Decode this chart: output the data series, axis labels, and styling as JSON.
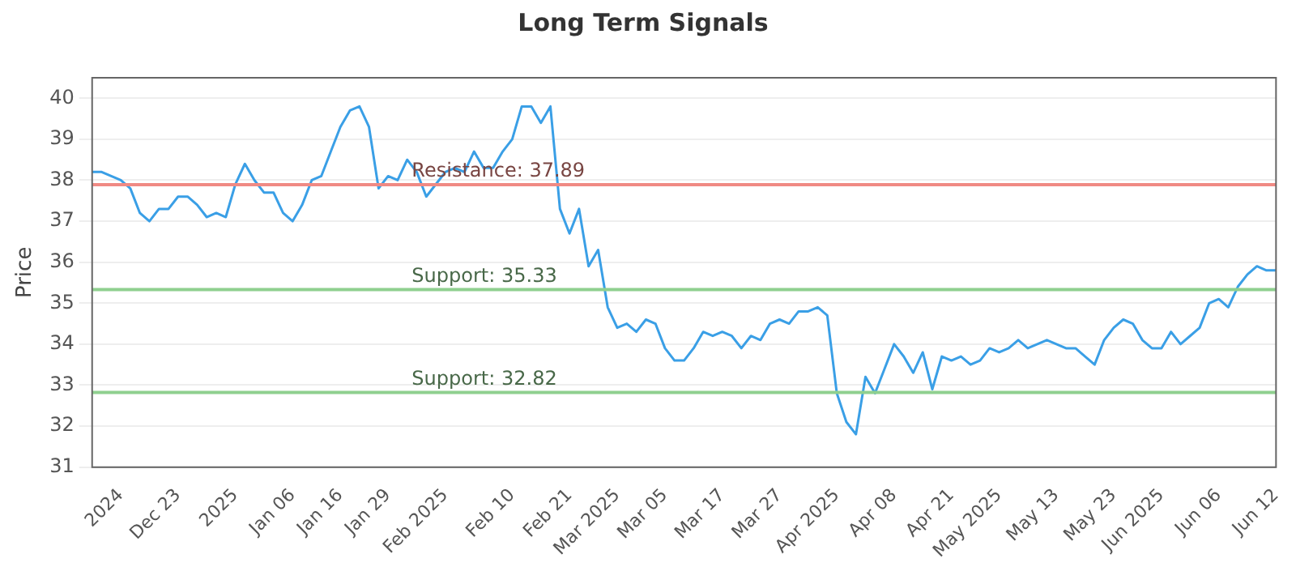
{
  "chart_data": {
    "type": "line",
    "title": "Long Term Signals",
    "ylabel": "Price",
    "categories": [
      null,
      null,
      null,
      "2024",
      null,
      null,
      null,
      null,
      null,
      "Dec 23",
      null,
      null,
      null,
      null,
      null,
      "2025",
      null,
      null,
      null,
      null,
      null,
      "Jan 06",
      null,
      null,
      null,
      null,
      "Jan 16",
      null,
      null,
      null,
      null,
      "Jan 29",
      null,
      null,
      null,
      null,
      null,
      "Feb 2025",
      null,
      null,
      null,
      null,
      null,
      null,
      "Feb 10",
      null,
      null,
      null,
      null,
      null,
      "Feb 21",
      null,
      null,
      null,
      null,
      "Mar 2025",
      null,
      null,
      null,
      null,
      "Mar 05",
      null,
      null,
      null,
      null,
      null,
      "Mar 17",
      null,
      null,
      null,
      null,
      null,
      "Mar 27",
      null,
      null,
      null,
      null,
      null,
      "Apr 2025",
      null,
      null,
      null,
      null,
      null,
      "Apr 08",
      null,
      null,
      null,
      null,
      null,
      "Apr 21",
      null,
      null,
      null,
      null,
      "May 2025",
      null,
      null,
      null,
      null,
      null,
      "May 13",
      null,
      null,
      null,
      null,
      null,
      "May 23",
      null,
      null,
      null,
      null,
      "Jun 2025",
      null,
      null,
      null,
      null,
      null,
      "Jun 06",
      null,
      null,
      null,
      null,
      null,
      "Jun 12"
    ],
    "series": [
      {
        "color": "#3a9fe6",
        "values": [
          38.2,
          38.2,
          38.1,
          38.0,
          37.8,
          37.2,
          37.0,
          37.3,
          37.3,
          37.6,
          37.6,
          37.4,
          37.1,
          37.2,
          37.1,
          37.9,
          38.4,
          38.0,
          37.7,
          37.7,
          37.2,
          37.0,
          37.4,
          38.0,
          38.1,
          38.7,
          39.3,
          39.7,
          39.8,
          39.3,
          37.8,
          38.1,
          38.0,
          38.5,
          38.2,
          37.6,
          37.9,
          38.2,
          38.3,
          38.2,
          38.7,
          38.3,
          38.3,
          38.7,
          39.0,
          39.8,
          39.8,
          39.4,
          39.8,
          37.3,
          36.7,
          37.3,
          35.9,
          36.3,
          34.9,
          34.4,
          34.5,
          34.3,
          34.6,
          34.5,
          33.9,
          33.6,
          33.6,
          33.9,
          34.3,
          34.2,
          34.3,
          34.2,
          33.9,
          34.2,
          34.1,
          34.5,
          34.6,
          34.5,
          34.8,
          34.8,
          34.9,
          34.7,
          32.8,
          32.1,
          31.8,
          33.2,
          32.8,
          33.4,
          34.0,
          33.7,
          33.3,
          33.8,
          32.9,
          33.7,
          33.6,
          33.7,
          33.5,
          33.6,
          33.9,
          33.8,
          33.9,
          34.1,
          33.9,
          34.0,
          34.1,
          34.0,
          33.9,
          33.9,
          33.7,
          33.5,
          34.1,
          34.4,
          34.6,
          34.5,
          34.1,
          33.9,
          33.9,
          34.3,
          34.0,
          34.2,
          34.4,
          35.0,
          35.1,
          34.9,
          35.4,
          35.7,
          35.9,
          35.8,
          35.8
        ]
      }
    ],
    "ylim": [
      31,
      40.5
    ],
    "yticks": [
      31,
      32,
      33,
      34,
      35,
      36,
      37,
      38,
      39,
      40
    ],
    "grid": "y",
    "legend": false,
    "marker": "none",
    "ref_lines": [
      {
        "axis": "y",
        "value": 37.89,
        "label": "Resistance: 37.89",
        "color": "#f08a84"
      },
      {
        "axis": "y",
        "value": 35.33,
        "label": "Support: 35.33",
        "color": "#8fd08f"
      },
      {
        "axis": "y",
        "value": 32.82,
        "label": "Support: 32.82",
        "color": "#8fd08f"
      }
    ]
  }
}
